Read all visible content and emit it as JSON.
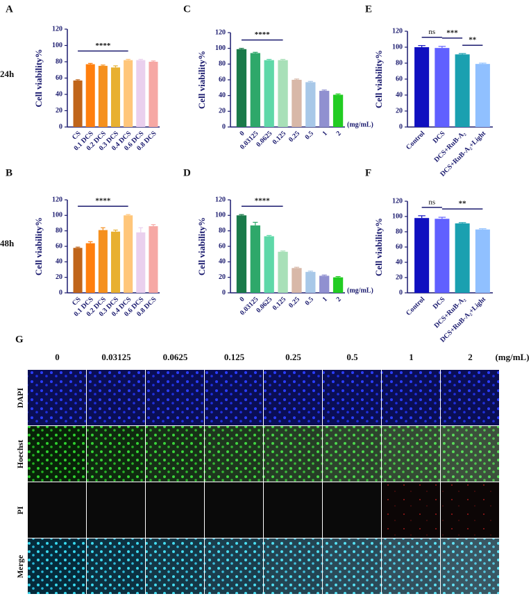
{
  "chart_data": [
    {
      "type": "bar",
      "panel": "A",
      "ylabel": "Cell viability%",
      "categories": [
        "CS",
        "0.1 DCS",
        "0.2 DCS",
        "0.3 DCS",
        "0.4 DCS",
        "0.6 DCS",
        "0.8 DCS"
      ],
      "values": [
        57,
        77,
        75,
        73,
        82,
        82,
        80
      ],
      "errors": [
        1,
        1,
        1,
        2,
        1,
        1,
        1
      ],
      "colors": [
        "#c0651a",
        "#ff7f0e",
        "#f5901e",
        "#e8b030",
        "#ffc67a",
        "#ead0ee",
        "#f6a8a4"
      ],
      "ylim": [
        0,
        120
      ],
      "yticks": [
        0,
        20,
        40,
        60,
        80,
        100,
        120
      ],
      "significance": [
        {
          "label": "****",
          "from": "CS",
          "to": "0.4 DCS"
        }
      ]
    },
    {
      "type": "bar",
      "panel": "B",
      "ylabel": "Cell viability%",
      "categories": [
        "CS",
        "0.1 DCS",
        "0.2 DCS",
        "0.3 DCS",
        "0.4 DCS",
        "0.6 DCS",
        "0.8 DCS"
      ],
      "values": [
        58,
        64,
        81,
        79,
        100,
        78,
        86
      ],
      "errors": [
        1,
        2,
        3,
        2,
        1,
        6,
        2
      ],
      "colors": [
        "#c0651a",
        "#ff7f0e",
        "#f5901e",
        "#e8b030",
        "#ffc67a",
        "#ead0ee",
        "#f6a8a4"
      ],
      "ylim": [
        0,
        120
      ],
      "yticks": [
        0,
        20,
        40,
        60,
        80,
        100,
        120
      ],
      "significance": [
        {
          "label": "****",
          "from": "CS",
          "to": "0.4 DCS"
        }
      ]
    },
    {
      "type": "bar",
      "panel": "C",
      "ylabel": "Cell viability%",
      "unit": "(mg/mL)",
      "categories": [
        "0",
        "0.03125",
        "0.0625",
        "0.125",
        "0.25",
        "0.5",
        "1",
        "2"
      ],
      "values": [
        99,
        94,
        85,
        85,
        60,
        57,
        46,
        41
      ],
      "errors": [
        1,
        1,
        1,
        1,
        1,
        1,
        1,
        1
      ],
      "colors": [
        "#1a7a4a",
        "#2ea86a",
        "#5ed8a8",
        "#a8e0b8",
        "#d8b8a8",
        "#a8c8e8",
        "#9090d0",
        "#22cc22"
      ],
      "ylim": [
        0,
        120
      ],
      "yticks": [
        0,
        20,
        40,
        60,
        80,
        100,
        120
      ],
      "significance": [
        {
          "label": "****",
          "from": "0",
          "to": "0.125"
        }
      ]
    },
    {
      "type": "bar",
      "panel": "D",
      "ylabel": "Cell viability%",
      "unit": "(mg/mL)",
      "categories": [
        "0",
        "0.03125",
        "0.0625",
        "0.125",
        "0.25",
        "0.5",
        "1",
        "2"
      ],
      "values": [
        100,
        87,
        73,
        53,
        32,
        27,
        22,
        20
      ],
      "errors": [
        1,
        4,
        1,
        1,
        1,
        1,
        1,
        1
      ],
      "colors": [
        "#1a7a4a",
        "#2ea86a",
        "#5ed8a8",
        "#a8e0b8",
        "#d8b8a8",
        "#a8c8e8",
        "#9090d0",
        "#22cc22"
      ],
      "ylim": [
        0,
        120
      ],
      "yticks": [
        0,
        20,
        40,
        60,
        80,
        100,
        120
      ],
      "significance": [
        {
          "label": "****",
          "from": "0",
          "to": "0.125"
        }
      ]
    },
    {
      "type": "bar",
      "panel": "E",
      "ylabel": "Cell viability%",
      "categories": [
        "Control",
        "DCS",
        "DCS+RuB-A₂",
        "DCS+RuB-A₂+Light"
      ],
      "values": [
        100,
        99,
        91,
        79
      ],
      "errors": [
        2,
        2,
        1,
        1
      ],
      "colors": [
        "#1010c0",
        "#6060ff",
        "#1aa0b0",
        "#90c0ff"
      ],
      "ylim": [
        0,
        120
      ],
      "yticks": [
        0,
        20,
        40,
        60,
        80,
        100,
        120
      ],
      "significance": [
        {
          "label": "ns",
          "from": "Control",
          "to": "DCS"
        },
        {
          "label": "***",
          "from": "DCS",
          "to": "DCS+RuB-A₂"
        },
        {
          "label": "**",
          "from": "DCS+RuB-A₂",
          "to": "DCS+RuB-A₂+Light"
        }
      ]
    },
    {
      "type": "bar",
      "panel": "F",
      "ylabel": "Cell viability%",
      "categories": [
        "Control",
        "DCS",
        "DCS+RuB-A₂",
        "DCS+RuB-A₂+Light"
      ],
      "values": [
        98,
        97,
        91,
        83
      ],
      "errors": [
        3,
        2,
        1,
        1
      ],
      "colors": [
        "#1010c0",
        "#6060ff",
        "#1aa0b0",
        "#90c0ff"
      ],
      "ylim": [
        0,
        120
      ],
      "yticks": [
        0,
        20,
        40,
        60,
        80,
        100,
        120
      ],
      "significance": [
        {
          "label": "ns",
          "from": "Control",
          "to": "DCS"
        },
        {
          "label": "**",
          "from": "DCS",
          "to": "DCS+RuB-A₂+Light"
        }
      ]
    }
  ],
  "row_labels": [
    "24h",
    "48h"
  ],
  "image_grid": {
    "panel": "G",
    "columns": [
      "0",
      "0.03125",
      "0.0625",
      "0.125",
      "0.25",
      "0.5",
      "1",
      "2"
    ],
    "unit": "(mg/mL)",
    "rows": [
      "DAPI",
      "Hoechst",
      "PI",
      "Merge"
    ]
  }
}
